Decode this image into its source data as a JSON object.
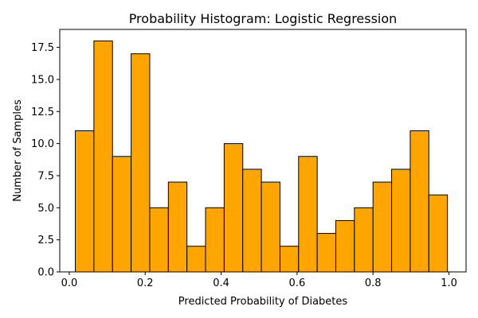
{
  "chart_data": {
    "type": "bar",
    "title": "Probability Histogram: Logistic Regression",
    "xlabel": "Predicted Probability of Diabetes",
    "ylabel": "Number of Samples",
    "bin_edges": [
      0.016,
      0.065,
      0.114,
      0.163,
      0.212,
      0.261,
      0.31,
      0.359,
      0.408,
      0.457,
      0.506,
      0.555,
      0.604,
      0.653,
      0.702,
      0.751,
      0.8,
      0.849,
      0.898,
      0.947,
      0.996
    ],
    "values": [
      11,
      18,
      9,
      17,
      5,
      7,
      2,
      5,
      10,
      8,
      7,
      2,
      9,
      3,
      4,
      5,
      7,
      8,
      11,
      6
    ],
    "xlim": [
      -0.025,
      1.045
    ],
    "ylim": [
      0,
      18.9
    ],
    "xticks": [
      0.0,
      0.2,
      0.4,
      0.6,
      0.8,
      1.0
    ],
    "xtick_labels": [
      "0.0",
      "0.2",
      "0.4",
      "0.6",
      "0.8",
      "1.0"
    ],
    "yticks": [
      0,
      2.5,
      5,
      7.5,
      10,
      12.5,
      15,
      17.5
    ],
    "ytick_labels": [
      "0.0",
      "2.5",
      "5.0",
      "7.5",
      "10.0",
      "12.5",
      "15.0",
      "17.5"
    ],
    "grid": false,
    "bar_color": "#FFA500",
    "edge_color": "#000000"
  }
}
